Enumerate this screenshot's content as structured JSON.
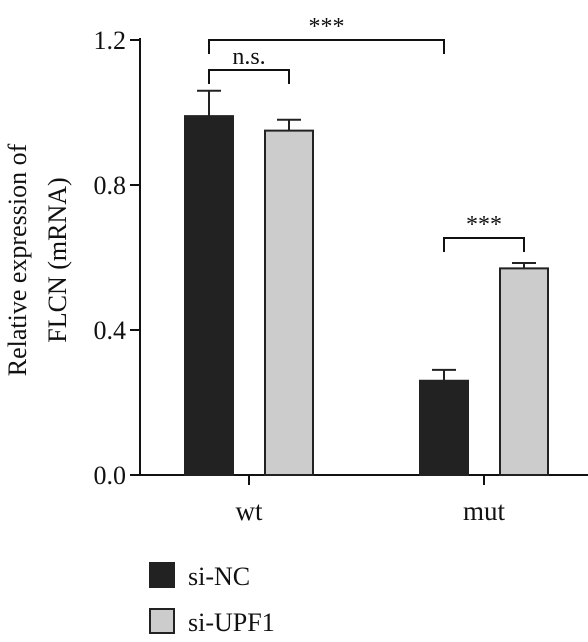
{
  "chart_data": {
    "type": "bar",
    "categories": [
      "wt",
      "mut"
    ],
    "series": [
      {
        "name": "si-NC",
        "values": [
          0.99,
          0.26
        ],
        "errors": [
          0.07,
          0.03
        ],
        "color": "#222222"
      },
      {
        "name": "si-UPF1",
        "values": [
          0.95,
          0.57
        ],
        "errors": [
          0.03,
          0.015
        ],
        "color": "#cccccc"
      }
    ],
    "ylabel_lines": [
      "Relative expression of",
      "FLCN (mRNA)"
    ],
    "ylim": [
      0,
      1.2
    ],
    "yticks": [
      "0.0",
      "0.4",
      "0.8",
      "1.2"
    ],
    "significance": [
      {
        "label": "***",
        "from": {
          "category": 0,
          "series": 0
        },
        "to": {
          "category": 1,
          "series": 0
        }
      },
      {
        "label": "n.s.",
        "from": {
          "category": 0,
          "series": 0
        },
        "to": {
          "category": 0,
          "series": 1
        }
      },
      {
        "label": "***",
        "from": {
          "category": 1,
          "series": 0
        },
        "to": {
          "category": 1,
          "series": 1
        }
      }
    ],
    "legend_position": "bottom-left"
  }
}
